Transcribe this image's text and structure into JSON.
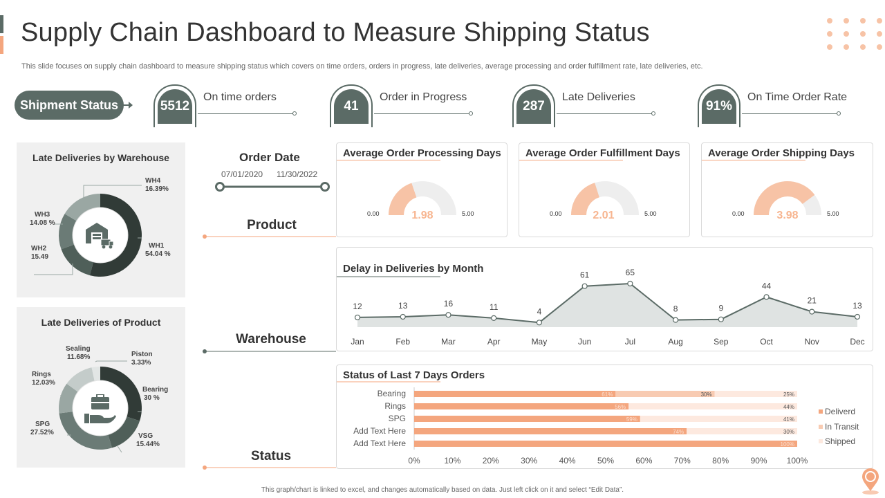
{
  "title": "Supply Chain Dashboard to Measure Shipping Status",
  "subtitle": "This slide focuses on supply chain dashboard to measure shipping status which covers on time orders, orders in progress, late deliveries, average processing and order fulfillment rate, late deliveries, etc.",
  "shipment_status": {
    "label": "Shipment Status",
    "kpis": [
      {
        "value": "5512",
        "label": "On time orders"
      },
      {
        "value": "41",
        "label": "Order in Progress"
      },
      {
        "value": "287",
        "label": "Late Deliveries"
      },
      {
        "value": "91%",
        "label": "On Time Order Rate"
      }
    ]
  },
  "filters": {
    "order_date_label": "Order  Date",
    "start_date": "07/01/2020",
    "end_date": "11/30/2022",
    "product_label": "Product",
    "warehouse_label": "Warehouse",
    "status_label": "Status"
  },
  "footer": "This graph/chart is linked to excel, and changes automatically based on data. Just left click on it and select “Edit Data”.",
  "colors": {
    "primary": "#5b6b66",
    "dark": "#313b37",
    "accent": "#f4a67e",
    "accent_light": "#f7c3a6",
    "gauge_track": "#eeeeee"
  },
  "icons": [
    "warehouse-icon",
    "delivery-hand-icon",
    "location-pin-icon",
    "arrow-right-icon"
  ],
  "chart_data": [
    {
      "type": "pie",
      "variant": "donut",
      "title": "Late Deliveries by Warehouse",
      "slices": [
        {
          "name": "WH1",
          "label": "54.04 %",
          "value": 54.04,
          "color": "#313b37"
        },
        {
          "name": "WH2",
          "label": "15.49",
          "value": 15.49,
          "color": "#4f5f59"
        },
        {
          "name": "WH3",
          "label": "14.08 %",
          "value": 14.08,
          "color": "#6b7b76"
        },
        {
          "name": "WH4",
          "label": "16.39%",
          "value": 16.39,
          "color": "#9aa7a3"
        }
      ]
    },
    {
      "type": "pie",
      "variant": "donut",
      "title": "Late Deliveries of Product",
      "slices": [
        {
          "name": "Bearing",
          "label": "30 %",
          "value": 30,
          "color": "#313b37"
        },
        {
          "name": "VSG",
          "label": "15.44%",
          "value": 15.44,
          "color": "#4f5f59"
        },
        {
          "name": "SPG",
          "label": "27.52%",
          "value": 27.52,
          "color": "#6b7b76"
        },
        {
          "name": "Rings",
          "label": "12.03%",
          "value": 12.03,
          "color": "#9aa7a3"
        },
        {
          "name": "Sealing",
          "label": "11.68%",
          "value": 11.68,
          "color": "#c4ccca"
        },
        {
          "name": "Piston",
          "label": "3.33%",
          "value": 3.33,
          "color": "#e2e6e5"
        }
      ]
    },
    {
      "type": "gauge",
      "title": "Average Order Processing Days",
      "value": 1.98,
      "value_label": "1.98",
      "min": 0,
      "max": 5,
      "min_label": "0.00",
      "max_label": "5.00"
    },
    {
      "type": "gauge",
      "title": "Average Order Fulfillment Days",
      "value": 2.01,
      "value_label": "2.01",
      "min": 0,
      "max": 5,
      "min_label": "0.00",
      "max_label": "5.00"
    },
    {
      "type": "gauge",
      "title": "Average Order Shipping Days",
      "value": 3.98,
      "value_label": "3.98",
      "min": 0,
      "max": 5,
      "min_label": "0.00",
      "max_label": "5.00"
    },
    {
      "type": "area",
      "title": "Delay in Deliveries by Month",
      "categories": [
        "Jan",
        "Feb",
        "Mar",
        "Apr",
        "May",
        "Jun",
        "Jul",
        "Aug",
        "Sep",
        "Oct",
        "Nov",
        "Dec"
      ],
      "values": [
        12,
        13,
        16,
        11,
        4,
        61,
        65,
        8,
        9,
        44,
        21,
        13
      ]
    },
    {
      "type": "bar",
      "orientation": "horizontal",
      "stacked": "percent",
      "title": "Status of Last 7 Days Orders",
      "categories": [
        "Bearing",
        "Rings",
        "SPG",
        "Add Text Here",
        "Add Text Here"
      ],
      "series": [
        {
          "name": "Deliverd",
          "values": [
            61,
            56,
            59,
            74,
            100
          ],
          "color": "#f4a67e"
        },
        {
          "name": "In Transit",
          "values": [
            30,
            0,
            0,
            0,
            0
          ],
          "color": "#f8cbb2"
        },
        {
          "name": "Shipped",
          "values": [
            25,
            44,
            41,
            30,
            0
          ],
          "color": "#fde9df"
        }
      ],
      "segment_labels": [
        [
          "61%",
          "30%",
          "25%"
        ],
        [
          "56%",
          "",
          "44%"
        ],
        [
          "59%",
          "",
          "41%"
        ],
        [
          "74%",
          "",
          "30%"
        ],
        [
          "100%",
          "",
          ""
        ]
      ],
      "x_ticks": [
        "0%",
        "10%",
        "20%",
        "30%",
        "40%",
        "50%",
        "60%",
        "70%",
        "80%",
        "90%",
        "100%"
      ],
      "xlim": [
        0,
        100
      ]
    }
  ]
}
